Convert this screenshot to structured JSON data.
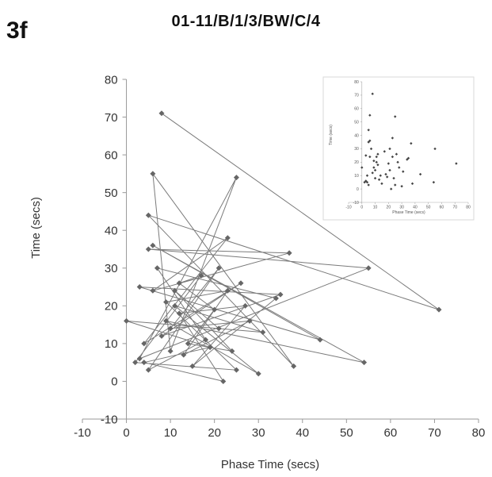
{
  "panel_label": "3f",
  "chart_data": [
    {
      "type": "line",
      "title": "01-11/B/1/3/BW/C/4",
      "xlabel": "Phase Time (secs)",
      "ylabel": "Time (secs)",
      "xlim": [
        -10,
        80
      ],
      "ylim": [
        -10,
        80
      ],
      "xticks": [
        -10,
        0,
        10,
        20,
        30,
        40,
        50,
        60,
        70,
        80
      ],
      "yticks": [
        -10,
        0,
        10,
        20,
        30,
        40,
        50,
        60,
        70,
        80
      ],
      "grid": false,
      "marker": "diamond",
      "connected": true,
      "colors": {
        "series": "#666666",
        "axis": "#999999",
        "text": "#333333"
      },
      "points": [
        {
          "x": 8,
          "y": 71
        },
        {
          "x": 71,
          "y": 19
        },
        {
          "x": 5,
          "y": 44
        },
        {
          "x": 38,
          "y": 4
        },
        {
          "x": 6,
          "y": 55
        },
        {
          "x": 10,
          "y": 8
        },
        {
          "x": 25,
          "y": 54
        },
        {
          "x": 3,
          "y": 6
        },
        {
          "x": 55,
          "y": 30
        },
        {
          "x": 5,
          "y": 35
        },
        {
          "x": 37,
          "y": 34
        },
        {
          "x": 6,
          "y": 24
        },
        {
          "x": 23,
          "y": 38
        },
        {
          "x": 4,
          "y": 10
        },
        {
          "x": 26,
          "y": 26
        },
        {
          "x": 8,
          "y": 12
        },
        {
          "x": 35,
          "y": 23
        },
        {
          "x": 3,
          "y": 25
        },
        {
          "x": 44,
          "y": 11
        },
        {
          "x": 6,
          "y": 36
        },
        {
          "x": 54,
          "y": 5
        },
        {
          "x": 9,
          "y": 16
        },
        {
          "x": 30,
          "y": 2
        },
        {
          "x": 11,
          "y": 20
        },
        {
          "x": 31,
          "y": 13
        },
        {
          "x": 0,
          "y": 16
        },
        {
          "x": 19,
          "y": 9
        },
        {
          "x": 4,
          "y": 5
        },
        {
          "x": 22,
          "y": 0
        },
        {
          "x": 12,
          "y": 18
        },
        {
          "x": 27,
          "y": 20
        },
        {
          "x": 15,
          "y": 4
        },
        {
          "x": 34,
          "y": 22
        },
        {
          "x": 7,
          "y": 30
        },
        {
          "x": 18,
          "y": 11
        },
        {
          "x": 5,
          "y": 3
        },
        {
          "x": 21,
          "y": 30
        },
        {
          "x": 10,
          "y": 14
        },
        {
          "x": 28,
          "y": 16
        },
        {
          "x": 13,
          "y": 7
        },
        {
          "x": 23,
          "y": 24
        },
        {
          "x": 9,
          "y": 21
        },
        {
          "x": 25,
          "y": 3
        },
        {
          "x": 2,
          "y": 5
        },
        {
          "x": 17,
          "y": 28
        },
        {
          "x": 12,
          "y": 26
        },
        {
          "x": 20,
          "y": 19
        },
        {
          "x": 14,
          "y": 10
        },
        {
          "x": 24,
          "y": 8
        },
        {
          "x": 11,
          "y": 24
        },
        {
          "x": 21,
          "y": 14
        }
      ]
    },
    {
      "type": "scatter",
      "title": "",
      "xlabel": "Phase Time (secs)",
      "ylabel": "Time (secs)",
      "xlim": [
        -10,
        80
      ],
      "ylim": [
        -10,
        80
      ],
      "xticks": [
        -10,
        0,
        10,
        20,
        30,
        40,
        50,
        60,
        70,
        80
      ],
      "yticks": [
        -10,
        0,
        10,
        20,
        30,
        40,
        50,
        60,
        70,
        80
      ],
      "grid": false,
      "marker": "diamond",
      "connected": false,
      "colors": {
        "series": "#444444",
        "axis": "#aaaaaa",
        "text": "#555555"
      },
      "points_from_main": true
    }
  ]
}
